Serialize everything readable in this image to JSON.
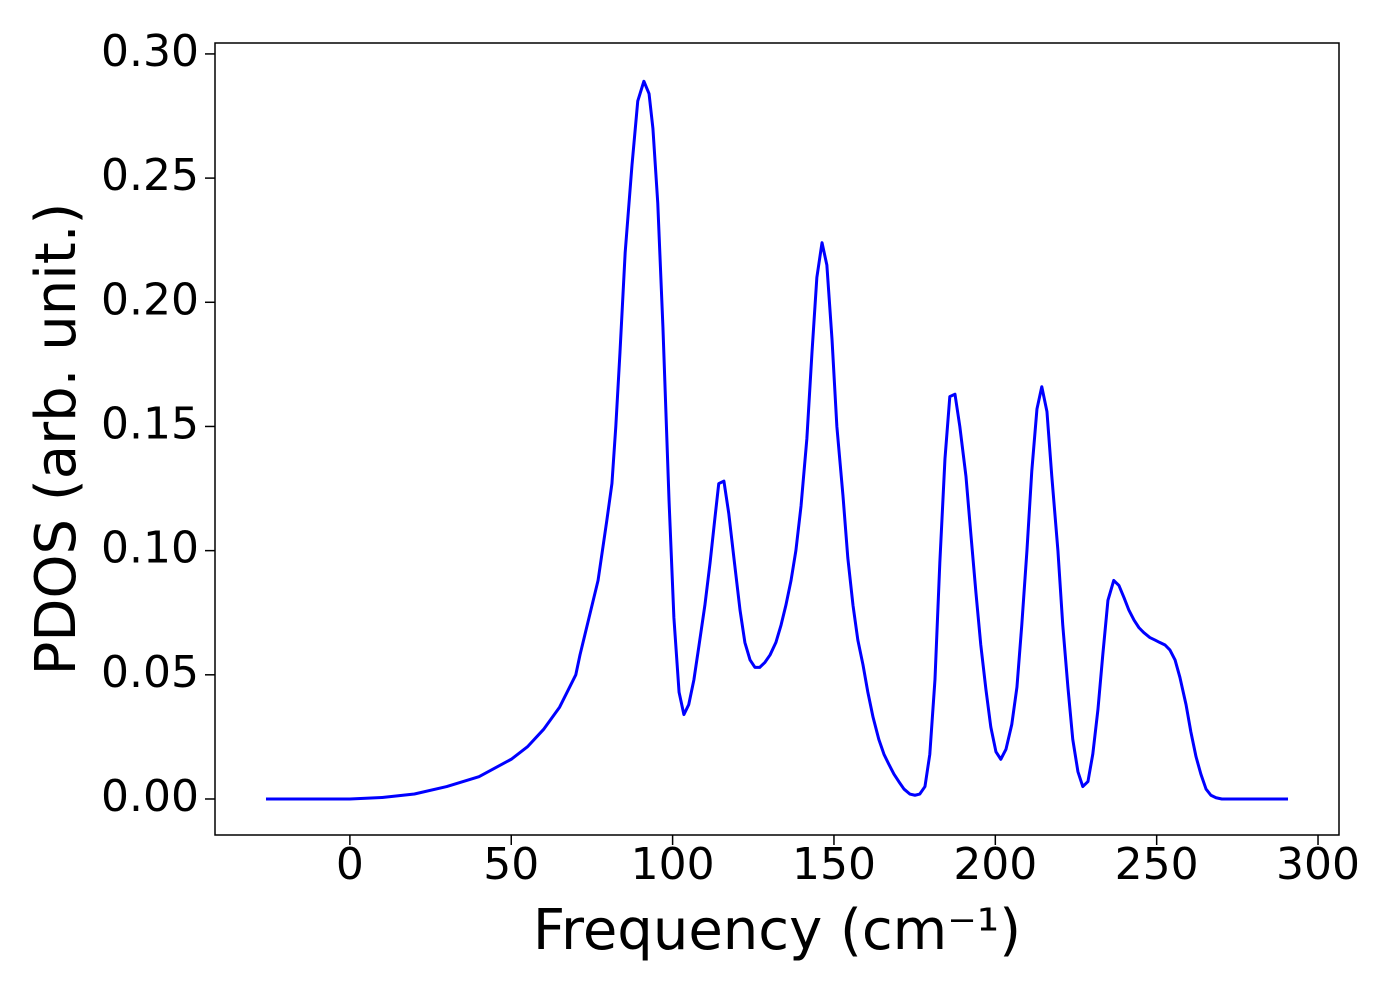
{
  "chart_data": {
    "type": "line",
    "xlabel": "Frequency (cm⁻¹)",
    "ylabel": "PDOS (arb. unit.)",
    "x": [
      -26,
      0,
      10,
      20,
      30,
      40,
      50,
      55,
      60,
      65,
      70,
      71.3,
      76.9,
      79.6,
      81.2,
      82.4,
      83.7,
      85.3,
      87.4,
      89.2,
      91.1,
      92.7,
      93.9,
      95.4,
      97,
      98.9,
      100.4,
      102,
      103.5,
      105,
      106.6,
      108.2,
      110,
      111.6,
      113.1,
      114.3,
      115.9,
      117.4,
      119,
      120.9,
      122.4,
      124,
      125.5,
      127,
      128.6,
      130.2,
      132,
      133.6,
      135.1,
      136.7,
      138.2,
      139.8,
      141.6,
      143.2,
      144.7,
      146.3,
      147.8,
      149.4,
      150.9,
      152.8,
      154.3,
      155.9,
      157.4,
      159,
      160.5,
      162.1,
      163.9,
      165.5,
      167,
      168.6,
      170.1,
      171.7,
      173.5,
      175.1,
      176.6,
      178.2,
      179.7,
      181.3,
      182.8,
      184.4,
      185.9,
      187.5,
      189,
      190.9,
      192.4,
      194,
      195.5,
      197.1,
      198.6,
      200.2,
      201.7,
      203.3,
      205.1,
      206.7,
      208.2,
      209.8,
      211.3,
      212.9,
      214.4,
      216,
      217.5,
      219.4,
      220.9,
      222.5,
      224,
      225.6,
      227.1,
      228.7,
      230.2,
      231.8,
      233.3,
      234.9,
      236.7,
      238.3,
      239.9,
      241.4,
      243,
      244.5,
      246,
      247.9,
      249.5,
      251,
      252.6,
      254.1,
      255.7,
      257.2,
      259.1,
      260.6,
      262.2,
      263.7,
      265.3,
      266.8,
      268.4,
      270.2,
      290.7
    ],
    "series": [
      {
        "color": "#0000ff",
        "values": [
          0,
          0,
          0.0006,
          0.002,
          0.005,
          0.009,
          0.016,
          0.021,
          0.028,
          0.037,
          0.05,
          0.058,
          0.088,
          0.112,
          0.127,
          0.15,
          0.18,
          0.22,
          0.255,
          0.281,
          0.289,
          0.284,
          0.27,
          0.24,
          0.19,
          0.12,
          0.073,
          0.043,
          0.034,
          0.038,
          0.048,
          0.062,
          0.078,
          0.095,
          0.113,
          0.127,
          0.128,
          0.115,
          0.097,
          0.076,
          0.063,
          0.056,
          0.053,
          0.053,
          0.055,
          0.058,
          0.063,
          0.07,
          0.078,
          0.088,
          0.1,
          0.118,
          0.145,
          0.18,
          0.21,
          0.224,
          0.215,
          0.185,
          0.15,
          0.122,
          0.097,
          0.078,
          0.064,
          0.054,
          0.043,
          0.033,
          0.024,
          0.018,
          0.014,
          0.01,
          0.007,
          0.004,
          0.002,
          0.0015,
          0.002,
          0.005,
          0.018,
          0.048,
          0.095,
          0.137,
          0.162,
          0.163,
          0.15,
          0.13,
          0.107,
          0.083,
          0.062,
          0.044,
          0.029,
          0.019,
          0.016,
          0.02,
          0.03,
          0.045,
          0.07,
          0.1,
          0.132,
          0.157,
          0.166,
          0.156,
          0.13,
          0.1,
          0.07,
          0.045,
          0.024,
          0.011,
          0.005,
          0.007,
          0.018,
          0.036,
          0.058,
          0.08,
          0.088,
          0.086,
          0.081,
          0.076,
          0.072,
          0.069,
          0.067,
          0.065,
          0.064,
          0.063,
          0.062,
          0.06,
          0.056,
          0.049,
          0.038,
          0.027,
          0.017,
          0.01,
          0.004,
          0.0015,
          0.0005,
          0,
          0
        ]
      }
    ],
    "xlim": [
      -41.8,
      306.5
    ],
    "ylim": [
      -0.0145,
      0.3044
    ],
    "xticks": [
      0,
      50,
      100,
      150,
      200,
      250,
      300
    ],
    "yticks": [
      {
        "value": 0,
        "label": "0.00"
      },
      {
        "value": 0.05,
        "label": "0.05"
      },
      {
        "value": 0.1,
        "label": "0.10"
      },
      {
        "value": 0.15,
        "label": "0.15"
      },
      {
        "value": 0.2,
        "label": "0.20"
      },
      {
        "value": 0.25,
        "label": "0.25"
      },
      {
        "value": 0.3,
        "label": "0.30"
      }
    ],
    "grid": false
  }
}
